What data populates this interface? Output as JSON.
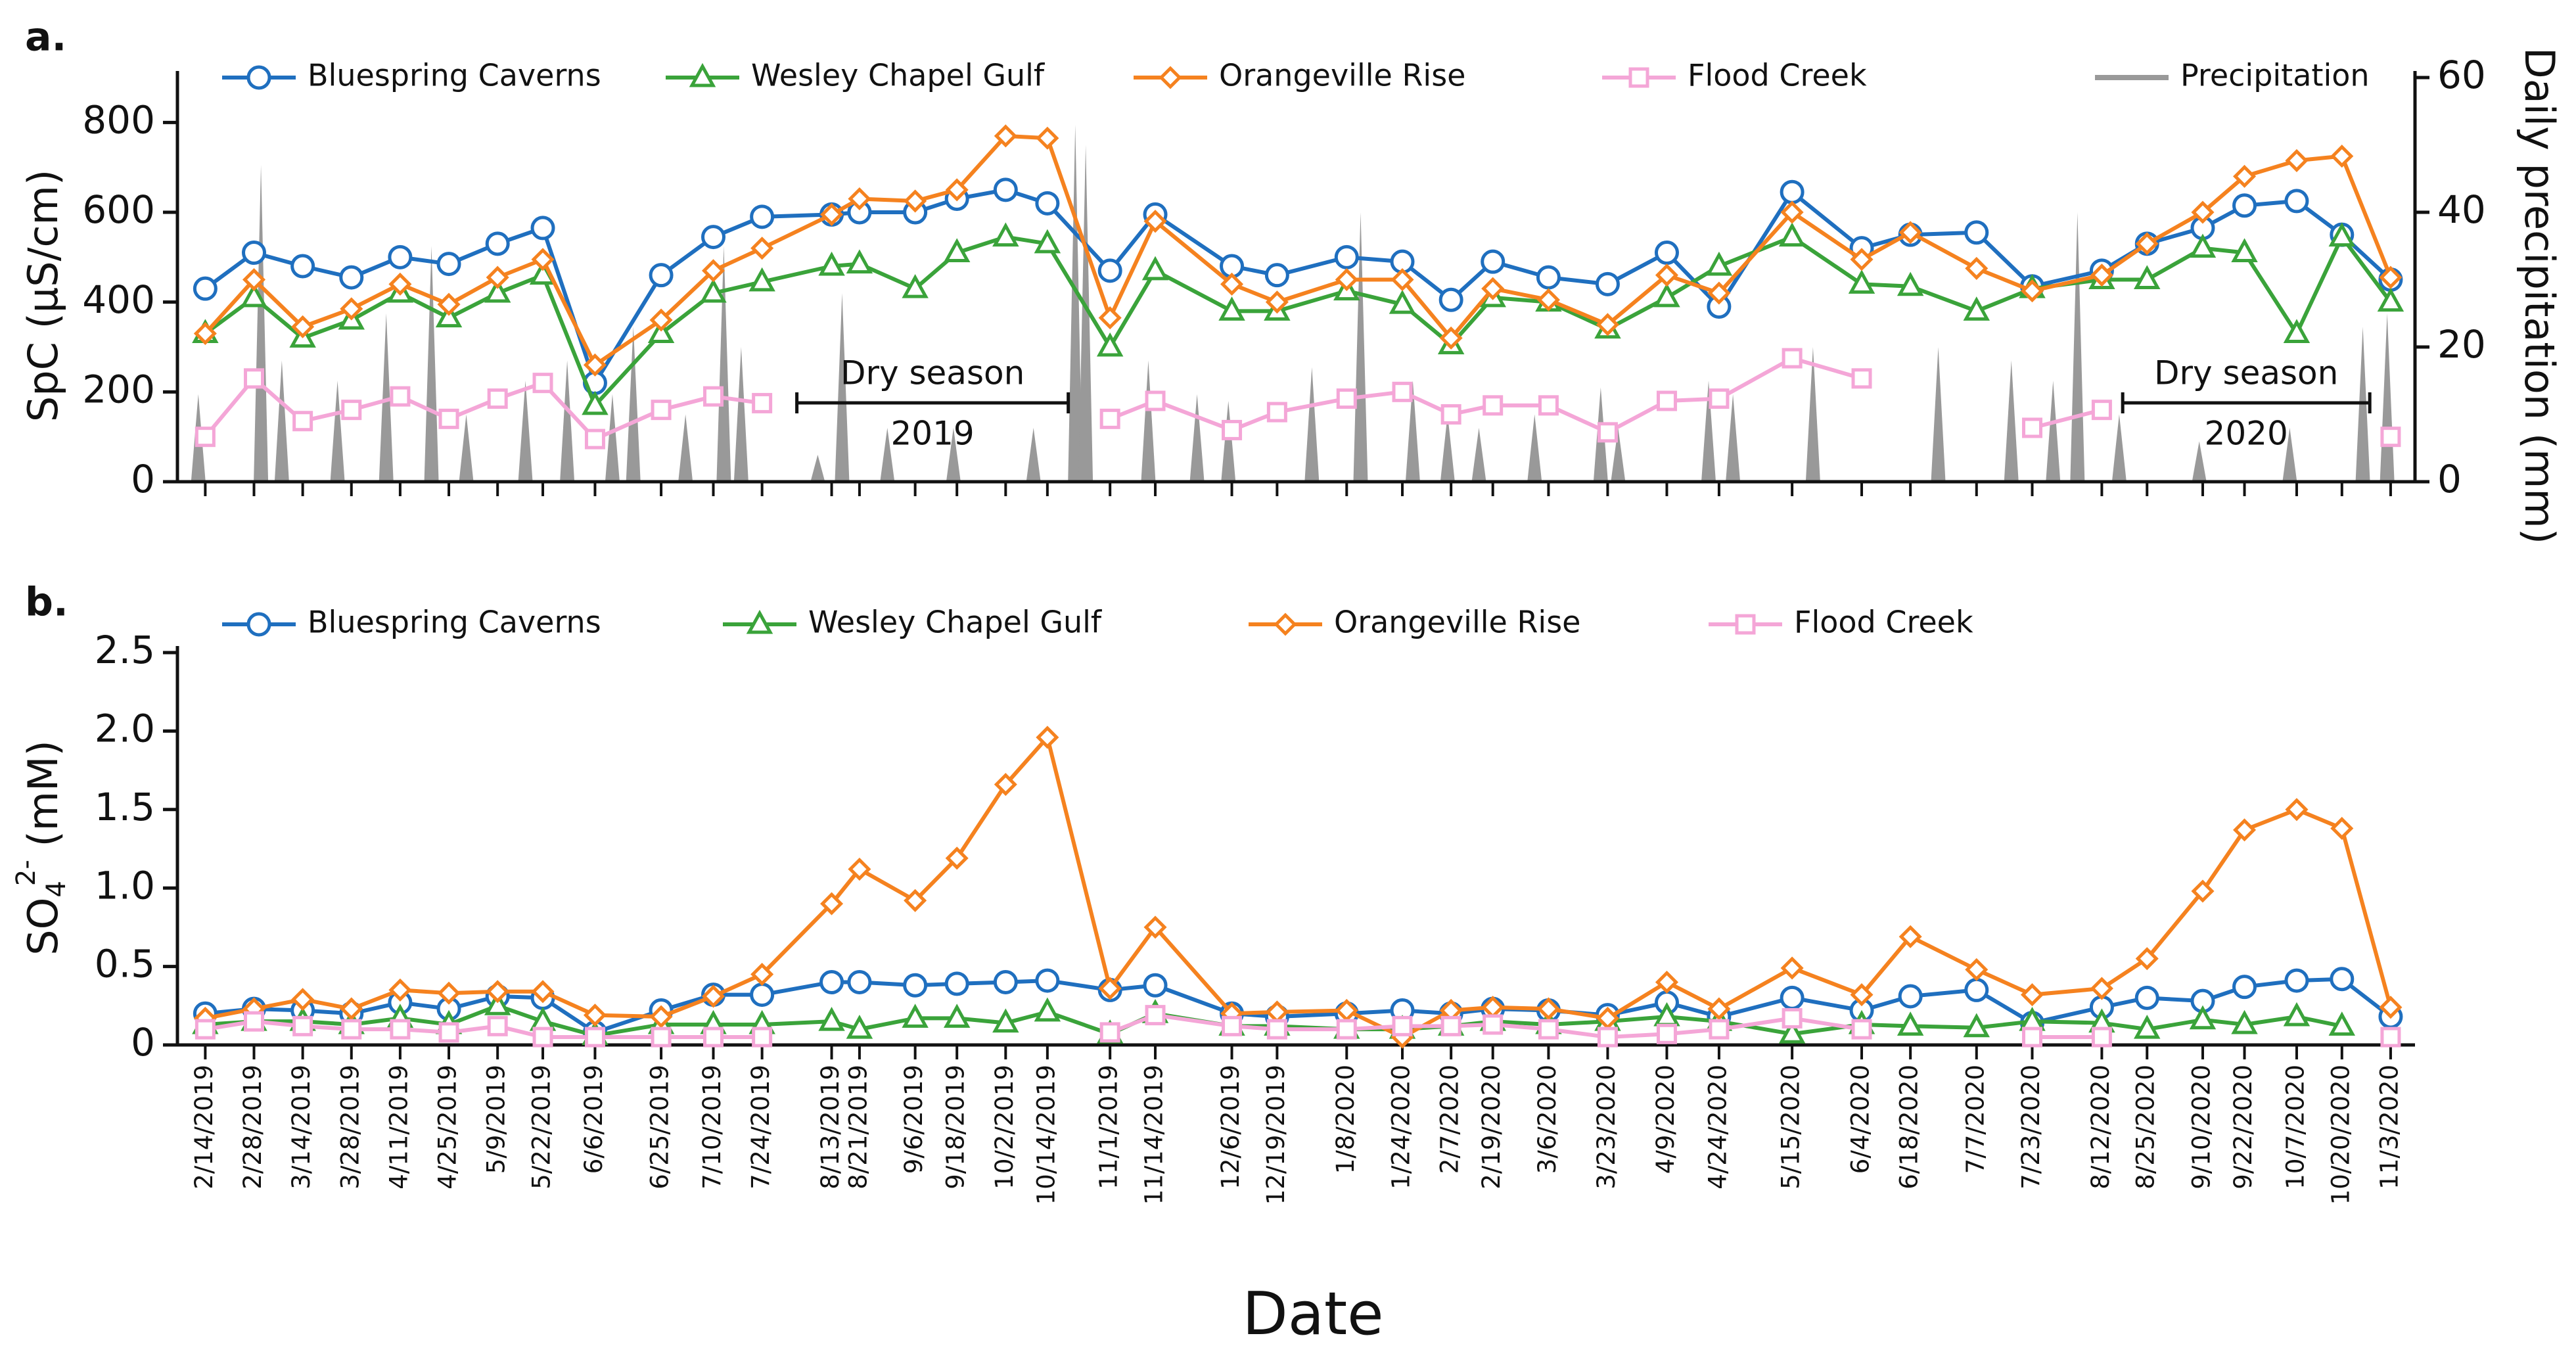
{
  "chart_data": [
    {
      "type": "line",
      "panel": "a.",
      "ylabel": "SpC  (μS/cm)",
      "y2label": "Daily precipitation (mm)",
      "x": [
        "2/14/2019",
        "2/28/2019",
        "3/14/2019",
        "3/28/2019",
        "4/11/2019",
        "4/25/2019",
        "5/9/2019",
        "5/22/2019",
        "6/6/2019",
        "6/25/2019",
        "7/10/2019",
        "7/24/2019",
        "8/13/2019",
        "8/21/2019",
        "9/6/2019",
        "9/18/2019",
        "10/2/2019",
        "10/14/2019",
        "11/1/2019",
        "11/14/2019",
        "12/6/2019",
        "12/19/2019",
        "1/8/2020",
        "1/24/2020",
        "2/7/2020",
        "2/19/2020",
        "3/6/2020",
        "3/23/2020",
        "4/9/2020",
        "4/24/2020",
        "5/15/2020",
        "6/4/2020",
        "6/18/2020",
        "7/7/2020",
        "7/23/2020",
        "8/12/2020",
        "8/25/2020",
        "9/10/2020",
        "9/22/2020",
        "10/7/2020",
        "10/20/2020",
        "11/3/2020"
      ],
      "xlim": [
        "2/6/2019",
        "11/10/2020"
      ],
      "ylim": [
        0,
        900
      ],
      "yticks": [
        0,
        200,
        400,
        600,
        800
      ],
      "y2lim": [
        0,
        60
      ],
      "y2ticks": [
        0,
        20,
        40,
        60
      ],
      "series": [
        {
          "name": "Bluespring Caverns",
          "color": "#1f6fbf",
          "marker": "circle",
          "values": [
            430,
            510,
            480,
            455,
            500,
            485,
            530,
            565,
            220,
            460,
            545,
            590,
            595,
            600,
            600,
            630,
            650,
            620,
            470,
            595,
            480,
            460,
            500,
            490,
            405,
            490,
            455,
            440,
            510,
            390,
            645,
            520,
            550,
            555,
            435,
            470,
            530,
            565,
            615,
            625,
            550,
            450
          ]
        },
        {
          "name": "Wesley Chapel Gulf",
          "color": "#3aa33a",
          "marker": "triangle",
          "values": [
            330,
            410,
            320,
            360,
            420,
            365,
            420,
            460,
            170,
            330,
            420,
            445,
            480,
            485,
            430,
            510,
            545,
            530,
            300,
            470,
            380,
            380,
            425,
            395,
            305,
            410,
            400,
            340,
            410,
            480,
            545,
            440,
            435,
            380,
            430,
            450,
            450,
            520,
            510,
            330,
            545,
            400
          ]
        },
        {
          "name": "Orangeville Rise",
          "color": "#f5821f",
          "marker": "diamond",
          "values": [
            330,
            450,
            345,
            385,
            440,
            395,
            455,
            495,
            260,
            360,
            470,
            520,
            595,
            630,
            625,
            650,
            770,
            765,
            365,
            580,
            440,
            400,
            450,
            450,
            320,
            430,
            405,
            350,
            460,
            420,
            600,
            495,
            555,
            475,
            425,
            460,
            530,
            600,
            680,
            715,
            725,
            455
          ]
        },
        {
          "name": "Flood Creek",
          "color": "#f4a6d7",
          "marker": "square",
          "values": [
            100,
            230,
            135,
            160,
            190,
            140,
            185,
            220,
            95,
            160,
            190,
            175,
            null,
            null,
            null,
            null,
            null,
            null,
            140,
            180,
            115,
            155,
            185,
            200,
            150,
            170,
            170,
            110,
            180,
            185,
            275,
            230,
            null,
            null,
            120,
            160,
            null,
            null,
            null,
            null,
            null,
            100
          ]
        },
        {
          "name": "Precipitation",
          "color": "#999999",
          "type": "area",
          "axis": "y2",
          "x": [
            "2/12/2019",
            "3/2/2019",
            "3/8/2019",
            "3/24/2019",
            "4/7/2019",
            "4/20/2019",
            "4/30/2019",
            "5/17/2019",
            "5/29/2019",
            "6/11/2019",
            "6/17/2019",
            "7/2/2019",
            "7/13/2019",
            "7/18/2019",
            "8/9/2019",
            "8/16/2019",
            "8/29/2019",
            "9/17/2019",
            "10/10/2019",
            "10/22/2019",
            "10/25/2019",
            "11/12/2019",
            "11/26/2019",
            "12/5/2019",
            "12/29/2019",
            "1/12/2020",
            "1/27/2020",
            "2/6/2020",
            "2/15/2020",
            "3/2/2020",
            "3/21/2020",
            "3/26/2020",
            "4/21/2020",
            "4/28/2020",
            "5/21/2020",
            "6/26/2020",
            "7/17/2020",
            "7/29/2020",
            "8/5/2020",
            "8/17/2020",
            "9/9/2020",
            "10/5/2020",
            "10/26/2020",
            "11/2/2020"
          ],
          "values": [
            13,
            47,
            18,
            15,
            25,
            35,
            10,
            15,
            18,
            13,
            23,
            10,
            35,
            20,
            4,
            28,
            8,
            8,
            8,
            53,
            50,
            18,
            13,
            12,
            17,
            40,
            15,
            10,
            8,
            10,
            14,
            8,
            15,
            13,
            20,
            20,
            18,
            15,
            40,
            10,
            6,
            8,
            23,
            25
          ]
        }
      ],
      "annotations": [
        {
          "lines": [
            "Dry season",
            "2019"
          ],
          "start": "8/3/2019",
          "end": "10/20/2019"
        },
        {
          "lines": [
            "Dry season",
            "2020"
          ],
          "start": "8/18/2020",
          "end": "10/28/2020"
        }
      ]
    },
    {
      "type": "line",
      "panel": "b.",
      "ylabel": {
        "base": "SO",
        "sub": "4",
        "sup": "2-",
        "unit": " (mM)"
      },
      "xlabel": "Date",
      "x": [
        "2/14/2019",
        "2/28/2019",
        "3/14/2019",
        "3/28/2019",
        "4/11/2019",
        "4/25/2019",
        "5/9/2019",
        "5/22/2019",
        "6/6/2019",
        "6/25/2019",
        "7/10/2019",
        "7/24/2019",
        "8/13/2019",
        "8/21/2019",
        "9/6/2019",
        "9/18/2019",
        "10/2/2019",
        "10/14/2019",
        "11/1/2019",
        "11/14/2019",
        "12/6/2019",
        "12/19/2019",
        "1/8/2020",
        "1/24/2020",
        "2/7/2020",
        "2/19/2020",
        "3/6/2020",
        "3/23/2020",
        "4/9/2020",
        "4/24/2020",
        "5/15/2020",
        "6/4/2020",
        "6/18/2020",
        "7/7/2020",
        "7/23/2020",
        "8/12/2020",
        "8/25/2020",
        "9/10/2020",
        "9/22/2020",
        "10/7/2020",
        "10/20/2020",
        "11/3/2020"
      ],
      "xlim": [
        "2/6/2019",
        "11/10/2020"
      ],
      "ylim": [
        0,
        2.5
      ],
      "yticks": [
        0,
        0.5,
        {
          "value": 1,
          "label": "1.0"
        },
        1.5,
        {
          "value": 2,
          "label": "2.0"
        },
        2.5
      ],
      "series": [
        {
          "name": "Bluespring Caverns",
          "color": "#1f6fbf",
          "marker": "circle",
          "values": [
            0.2,
            0.23,
            0.22,
            0.2,
            0.27,
            0.23,
            0.31,
            0.3,
            0.08,
            0.22,
            0.32,
            0.32,
            0.4,
            0.4,
            0.38,
            0.39,
            0.4,
            0.41,
            0.35,
            0.38,
            0.2,
            0.18,
            0.2,
            0.22,
            0.2,
            0.23,
            0.22,
            0.19,
            0.27,
            0.18,
            0.3,
            0.22,
            0.31,
            0.35,
            0.14,
            0.24,
            0.3,
            0.28,
            0.37,
            0.41,
            0.42,
            0.18
          ]
        },
        {
          "name": "Wesley Chapel Gulf",
          "color": "#3aa33a",
          "marker": "triangle",
          "values": [
            0.13,
            0.15,
            0.15,
            0.13,
            0.17,
            0.13,
            0.25,
            0.15,
            0.06,
            0.13,
            0.13,
            0.13,
            0.15,
            0.1,
            0.17,
            0.17,
            0.14,
            0.21,
            0.07,
            0.2,
            0.12,
            0.12,
            0.1,
            0.1,
            0.12,
            0.15,
            0.13,
            0.15,
            0.18,
            0.15,
            0.07,
            0.13,
            0.12,
            0.11,
            0.15,
            0.14,
            0.1,
            0.16,
            0.13,
            0.18,
            0.12,
            null
          ]
        },
        {
          "name": "Orangeville Rise",
          "color": "#f5821f",
          "marker": "diamond",
          "values": [
            0.17,
            0.23,
            0.29,
            0.23,
            0.35,
            0.33,
            0.34,
            0.34,
            0.19,
            0.18,
            0.31,
            0.45,
            0.9,
            1.12,
            0.92,
            1.19,
            1.66,
            1.96,
            0.36,
            0.75,
            0.2,
            0.21,
            0.22,
            0.05,
            0.22,
            0.24,
            0.23,
            0.17,
            0.4,
            0.23,
            0.49,
            0.32,
            0.69,
            0.48,
            0.32,
            0.36,
            0.55,
            0.98,
            1.37,
            1.5,
            1.38,
            0.24
          ]
        },
        {
          "name": "Flood Creek",
          "color": "#f4a6d7",
          "marker": "square",
          "values": [
            0.1,
            0.15,
            0.12,
            0.1,
            0.1,
            0.08,
            0.12,
            0.05,
            0.05,
            0.05,
            0.05,
            0.05,
            null,
            null,
            null,
            null,
            null,
            null,
            0.08,
            0.19,
            0.12,
            0.1,
            0.1,
            0.12,
            0.12,
            0.13,
            0.1,
            0.05,
            0.07,
            0.1,
            0.17,
            0.1,
            null,
            null,
            0.05,
            0.05,
            null,
            null,
            null,
            null,
            null,
            0.05
          ]
        }
      ]
    }
  ]
}
